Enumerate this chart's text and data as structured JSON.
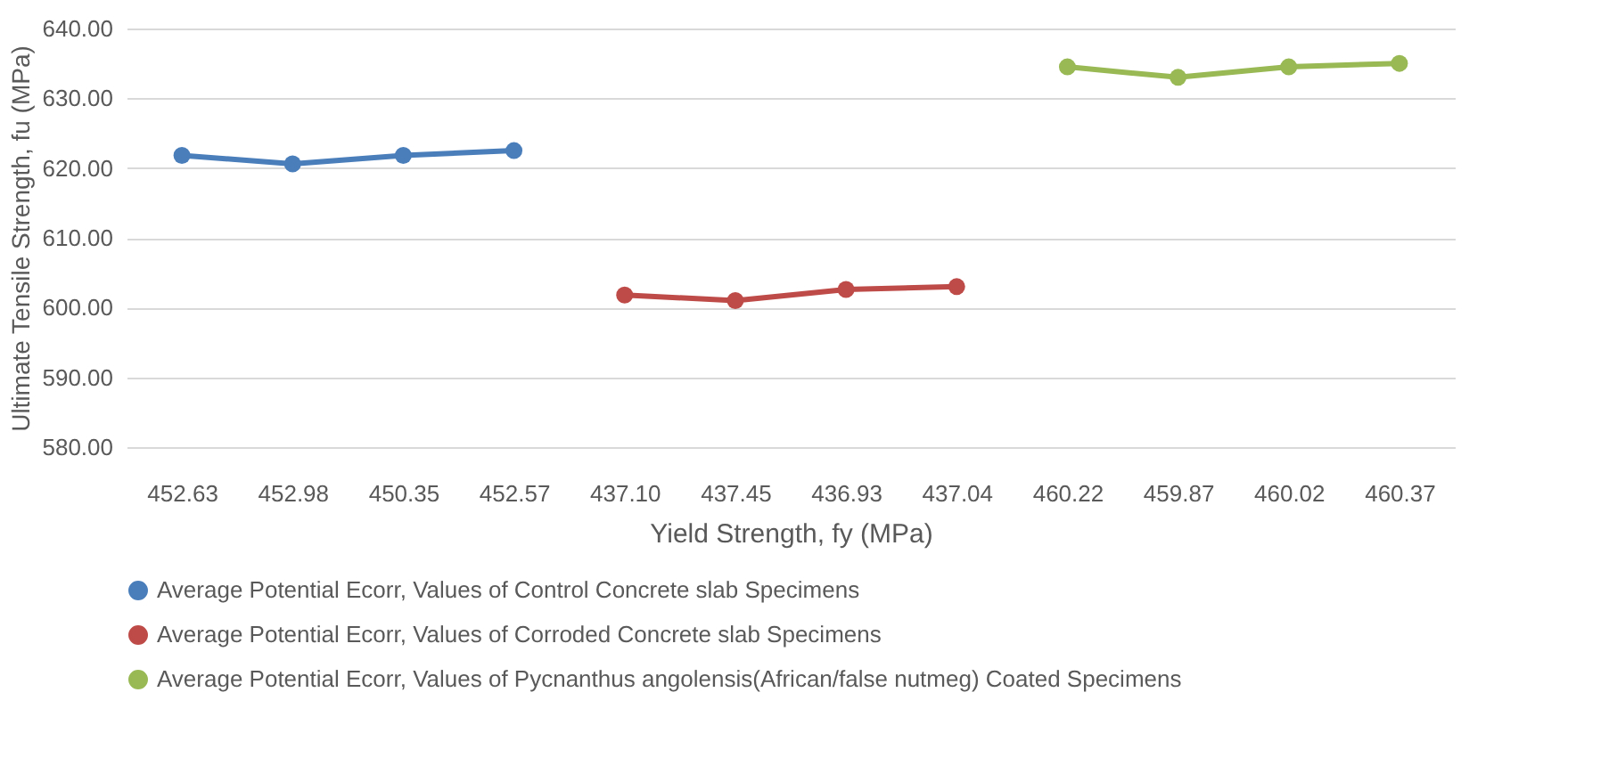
{
  "chart_data": {
    "type": "line",
    "xlabel": "Yield  Strength, fy (MPa)",
    "ylabel": "Ultimate Tensile Strength, fu (MPa)",
    "categories": [
      "452.63",
      "452.98",
      "450.35",
      "452.57",
      "437.10",
      "437.45",
      "436.93",
      "437.04",
      "460.22",
      "459.87",
      "460.02",
      "460.37"
    ],
    "series": [
      {
        "name": "Average Potential  Ecorr, Values of   Control  Concrete slab Specimens",
        "color": "#4a7ebb",
        "values": [
          621.8,
          620.6,
          621.8,
          622.5,
          null,
          null,
          null,
          null,
          null,
          null,
          null,
          null
        ]
      },
      {
        "name": "Average Potential  Ecorr, Values of  Corroded Concrete slab Specimens",
        "color": "#be4b48",
        "values": [
          null,
          null,
          null,
          null,
          601.8,
          601.0,
          602.6,
          603.0,
          null,
          null,
          null,
          null
        ]
      },
      {
        "name": "Average Potential  Ecorr, Values of Pycnanthus angolensis(African/false nutmeg)  Coated Specimens",
        "color": "#98b954",
        "values": [
          null,
          null,
          null,
          null,
          null,
          null,
          null,
          null,
          634.5,
          633.0,
          634.5,
          635.0
        ]
      }
    ],
    "ylim": [
      580,
      640
    ],
    "yticks": [
      {
        "value": 580,
        "label": "580.00"
      },
      {
        "value": 590,
        "label": "590.00"
      },
      {
        "value": 600,
        "label": "600.00"
      },
      {
        "value": 610,
        "label": "610.00"
      },
      {
        "value": 620,
        "label": "620.00"
      },
      {
        "value": 630,
        "label": "630.00"
      },
      {
        "value": 640,
        "label": "640.00"
      }
    ],
    "grid": "y",
    "legend": "bottom",
    "marker": "circle",
    "line_style": "solid"
  }
}
